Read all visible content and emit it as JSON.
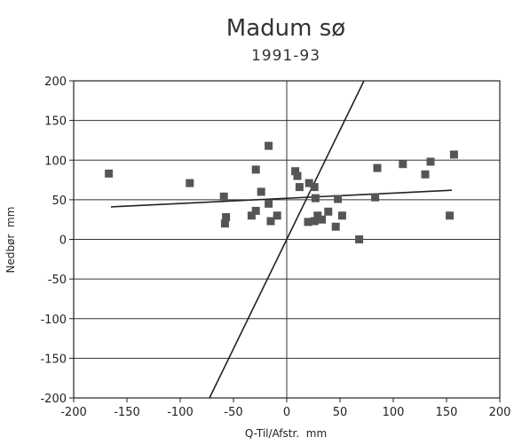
{
  "chart_data": {
    "type": "scatter",
    "title": "Madum sø",
    "subtitle": "1991-93",
    "xlabel": "Q-Til/Afstr.  mm",
    "ylabel": "Nedbør  mm",
    "xlim": [
      -200,
      200
    ],
    "ylim": [
      -200,
      200
    ],
    "x_ticks": [
      -200,
      -150,
      -100,
      -50,
      0,
      50,
      100,
      150,
      200
    ],
    "y_ticks": [
      -200,
      -150,
      -100,
      -50,
      0,
      50,
      100,
      150,
      200
    ],
    "x_tick_labels": [
      "-200",
      "-150",
      "-100",
      "-50",
      "0",
      "50",
      "100",
      "150",
      "200"
    ],
    "y_tick_labels": [
      "-200",
      "-150",
      "-100",
      "-50",
      "0",
      "50",
      "100",
      "150",
      "200"
    ],
    "grid": "horizontal",
    "marker_color": "#555555",
    "line_color": "#222222",
    "points": [
      {
        "x": -167,
        "y": 83
      },
      {
        "x": -91,
        "y": 71
      },
      {
        "x": -59,
        "y": 54
      },
      {
        "x": -57,
        "y": 28
      },
      {
        "x": -58,
        "y": 20
      },
      {
        "x": -33,
        "y": 30
      },
      {
        "x": -29,
        "y": 88
      },
      {
        "x": -29,
        "y": 36
      },
      {
        "x": -24,
        "y": 60
      },
      {
        "x": -17,
        "y": 118
      },
      {
        "x": -17,
        "y": 45
      },
      {
        "x": -15,
        "y": 23
      },
      {
        "x": -9,
        "y": 30
      },
      {
        "x": 8,
        "y": 86
      },
      {
        "x": 10,
        "y": 80
      },
      {
        "x": 12,
        "y": 66
      },
      {
        "x": 20,
        "y": 22
      },
      {
        "x": 21,
        "y": 71
      },
      {
        "x": 26,
        "y": 66
      },
      {
        "x": 26,
        "y": 23
      },
      {
        "x": 27,
        "y": 52
      },
      {
        "x": 29,
        "y": 30
      },
      {
        "x": 33,
        "y": 25
      },
      {
        "x": 39,
        "y": 35
      },
      {
        "x": 46,
        "y": 16
      },
      {
        "x": 48,
        "y": 51
      },
      {
        "x": 52,
        "y": 30
      },
      {
        "x": 68,
        "y": 0
      },
      {
        "x": 83,
        "y": 53
      },
      {
        "x": 85,
        "y": 90
      },
      {
        "x": 109,
        "y": 95
      },
      {
        "x": 130,
        "y": 82
      },
      {
        "x": 135,
        "y": 98
      },
      {
        "x": 153,
        "y": 30
      },
      {
        "x": 157,
        "y": 107
      }
    ],
    "lines": [
      {
        "x": [
          -165,
          155
        ],
        "y": [
          41,
          62
        ]
      },
      {
        "x": [
          -72.5,
          72.5
        ],
        "y": [
          -200,
          200
        ]
      }
    ]
  }
}
